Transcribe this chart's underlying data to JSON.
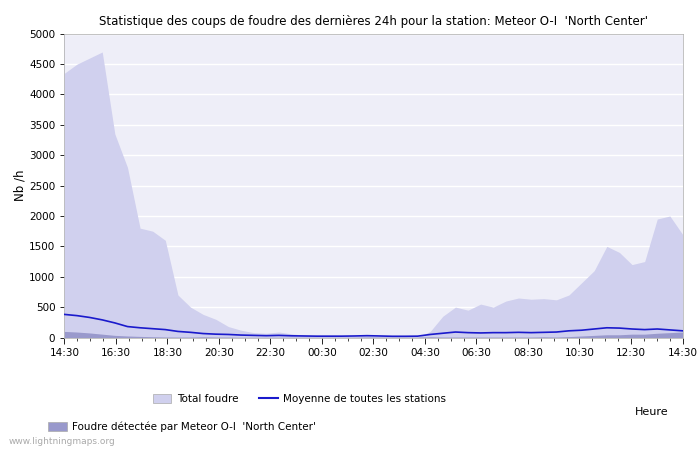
{
  "title": "Statistique des coups de foudre des dernières 24h pour la station: Meteor O-I  'North Center'",
  "ylabel": "Nb /h",
  "xlabel_end": "Heure",
  "x_labels": [
    "14:30",
    "16:30",
    "18:30",
    "20:30",
    "22:30",
    "00:30",
    "02:30",
    "04:30",
    "06:30",
    "08:30",
    "10:30",
    "12:30",
    "14:30"
  ],
  "ylim": [
    0,
    5000
  ],
  "yticks": [
    0,
    500,
    1000,
    1500,
    2000,
    2500,
    3000,
    3500,
    4000,
    4500,
    5000
  ],
  "background_color": "#ffffff",
  "plot_bg_color": "#eeeef8",
  "grid_color": "#ffffff",
  "fill_total_color": "#d0d0ee",
  "fill_station_color": "#9999cc",
  "line_mean_color": "#1a1acc",
  "watermark": "www.lightningmaps.org",
  "legend": {
    "total_label": "Total foudre",
    "station_label": "Foudre détectée par Meteor O-I  'North Center'",
    "mean_label": "Moyenne de toutes les stations"
  },
  "total_foudre": [
    4350,
    4500,
    4600,
    4700,
    3350,
    2800,
    1800,
    1750,
    1600,
    700,
    500,
    380,
    300,
    180,
    120,
    80,
    70,
    90,
    60,
    40,
    30,
    25,
    15,
    20,
    30,
    10,
    5,
    3,
    3,
    100,
    350,
    500,
    450,
    550,
    500,
    600,
    650,
    630,
    640,
    620,
    700,
    900,
    1100,
    1500,
    1400,
    1200,
    1250,
    1950,
    2000,
    1700
  ],
  "station_foudre": [
    100,
    90,
    75,
    55,
    35,
    25,
    18,
    13,
    9,
    8,
    8,
    12,
    8,
    8,
    4,
    4,
    4,
    4,
    4,
    4,
    4,
    4,
    4,
    4,
    8,
    8,
    8,
    8,
    8,
    12,
    8,
    8,
    8,
    8,
    8,
    8,
    8,
    8,
    12,
    8,
    15,
    25,
    35,
    45,
    45,
    55,
    55,
    70,
    80,
    90
  ],
  "mean_stations": [
    380,
    360,
    330,
    290,
    240,
    180,
    160,
    145,
    130,
    100,
    85,
    65,
    55,
    50,
    40,
    35,
    30,
    35,
    28,
    25,
    22,
    22,
    22,
    25,
    30,
    25,
    20,
    20,
    22,
    50,
    70,
    90,
    80,
    75,
    80,
    80,
    85,
    80,
    85,
    90,
    110,
    120,
    140,
    160,
    155,
    140,
    130,
    140,
    125,
    110
  ]
}
